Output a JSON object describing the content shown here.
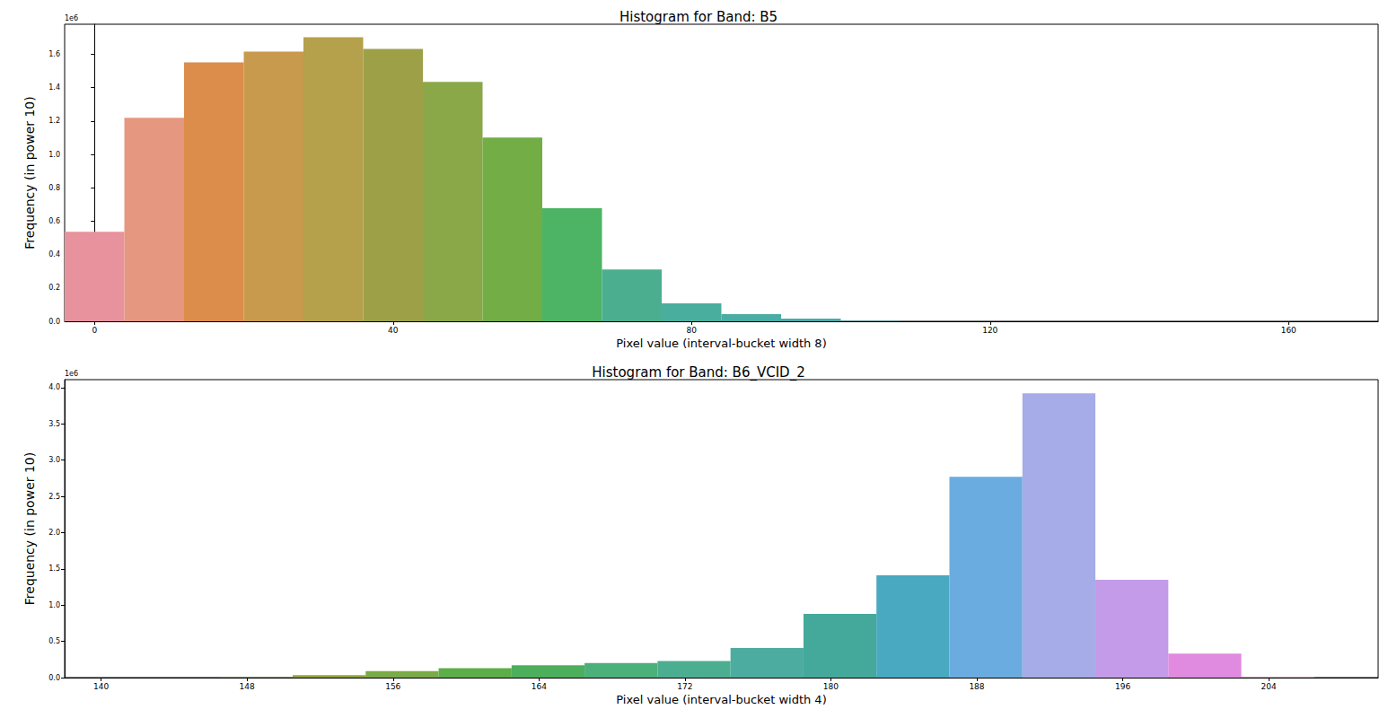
{
  "chart_data": [
    {
      "type": "histogram",
      "title": "Histogram for Band: B5",
      "x_label": "Pixel value (interval-bucket width 8)",
      "y_label": "Frequency (in power 10)",
      "annotations": [
        "1e6"
      ],
      "bins": [
        -4,
        4,
        12,
        20,
        28,
        36,
        44,
        52,
        60,
        68,
        76,
        84,
        92,
        100,
        108
      ],
      "values": [
        0.537,
        1.219,
        1.552,
        1.616,
        1.702,
        1.632,
        1.434,
        1.101,
        0.677,
        0.311,
        0.107,
        0.043,
        0.016,
        0.003
      ],
      "colors": [
        "#e8929d",
        "#e6977f",
        "#dc8c4b",
        "#c89a4d",
        "#b5a04b",
        "#9ea048",
        "#8aa848",
        "#72ad45",
        "#4cb464",
        "#4baf8f",
        "#4aae9e",
        "#49ada6",
        "#48acac",
        "#48abb2"
      ],
      "xlim": [
        -4,
        172
      ],
      "xticks": [
        0,
        40,
        80,
        120,
        160
      ],
      "ylim": [
        0,
        1.78
      ],
      "yticks": [
        {
          "value": 0,
          "label": "0.0"
        },
        0.2,
        0.4,
        0.6,
        0.8,
        {
          "value": 1,
          "label": "1.0"
        },
        1.2,
        1.4,
        1.6
      ],
      "grid": false
    },
    {
      "type": "histogram",
      "title": "Histogram for Band: B6_VCID_2",
      "x_label": "Pixel value (interval-bucket width 4)",
      "y_label": "Frequency (in power 10)",
      "annotations": [
        "1e6"
      ],
      "bins": [
        146.5,
        150.5,
        154.5,
        158.5,
        162.5,
        166.5,
        170.5,
        174.5,
        178.5,
        182.5,
        186.5,
        190.5,
        194.5,
        198.5,
        202.5,
        206.5
      ],
      "values": [
        0.005,
        0.035,
        0.09,
        0.13,
        0.17,
        0.2,
        0.23,
        0.41,
        0.88,
        1.41,
        2.77,
        3.92,
        1.35,
        0.33,
        0.012
      ],
      "colors": [
        "#9aa23b",
        "#8fa53a",
        "#7aab46",
        "#5cae48",
        "#4baf5c",
        "#4bb07a",
        "#4cae90",
        "#4daca0",
        "#44a99b",
        "#48a9c0",
        "#6aace0",
        "#a5ace8",
        "#c49be8",
        "#e08ae0",
        "#e58ec8"
      ],
      "xlim": [
        138,
        210
      ],
      "xticks": [
        140,
        148,
        156,
        164,
        172,
        180,
        188,
        196,
        204
      ],
      "ylim": [
        0,
        4.11
      ],
      "yticks": [
        {
          "value": 0,
          "label": "0.0"
        },
        0.5,
        {
          "value": 1,
          "label": "1.0"
        },
        1.5,
        {
          "value": 2,
          "label": "2.0"
        },
        2.5,
        {
          "value": 3,
          "label": "3.0"
        },
        3.5,
        {
          "value": 4,
          "label": "4.0"
        }
      ],
      "grid": false
    }
  ]
}
